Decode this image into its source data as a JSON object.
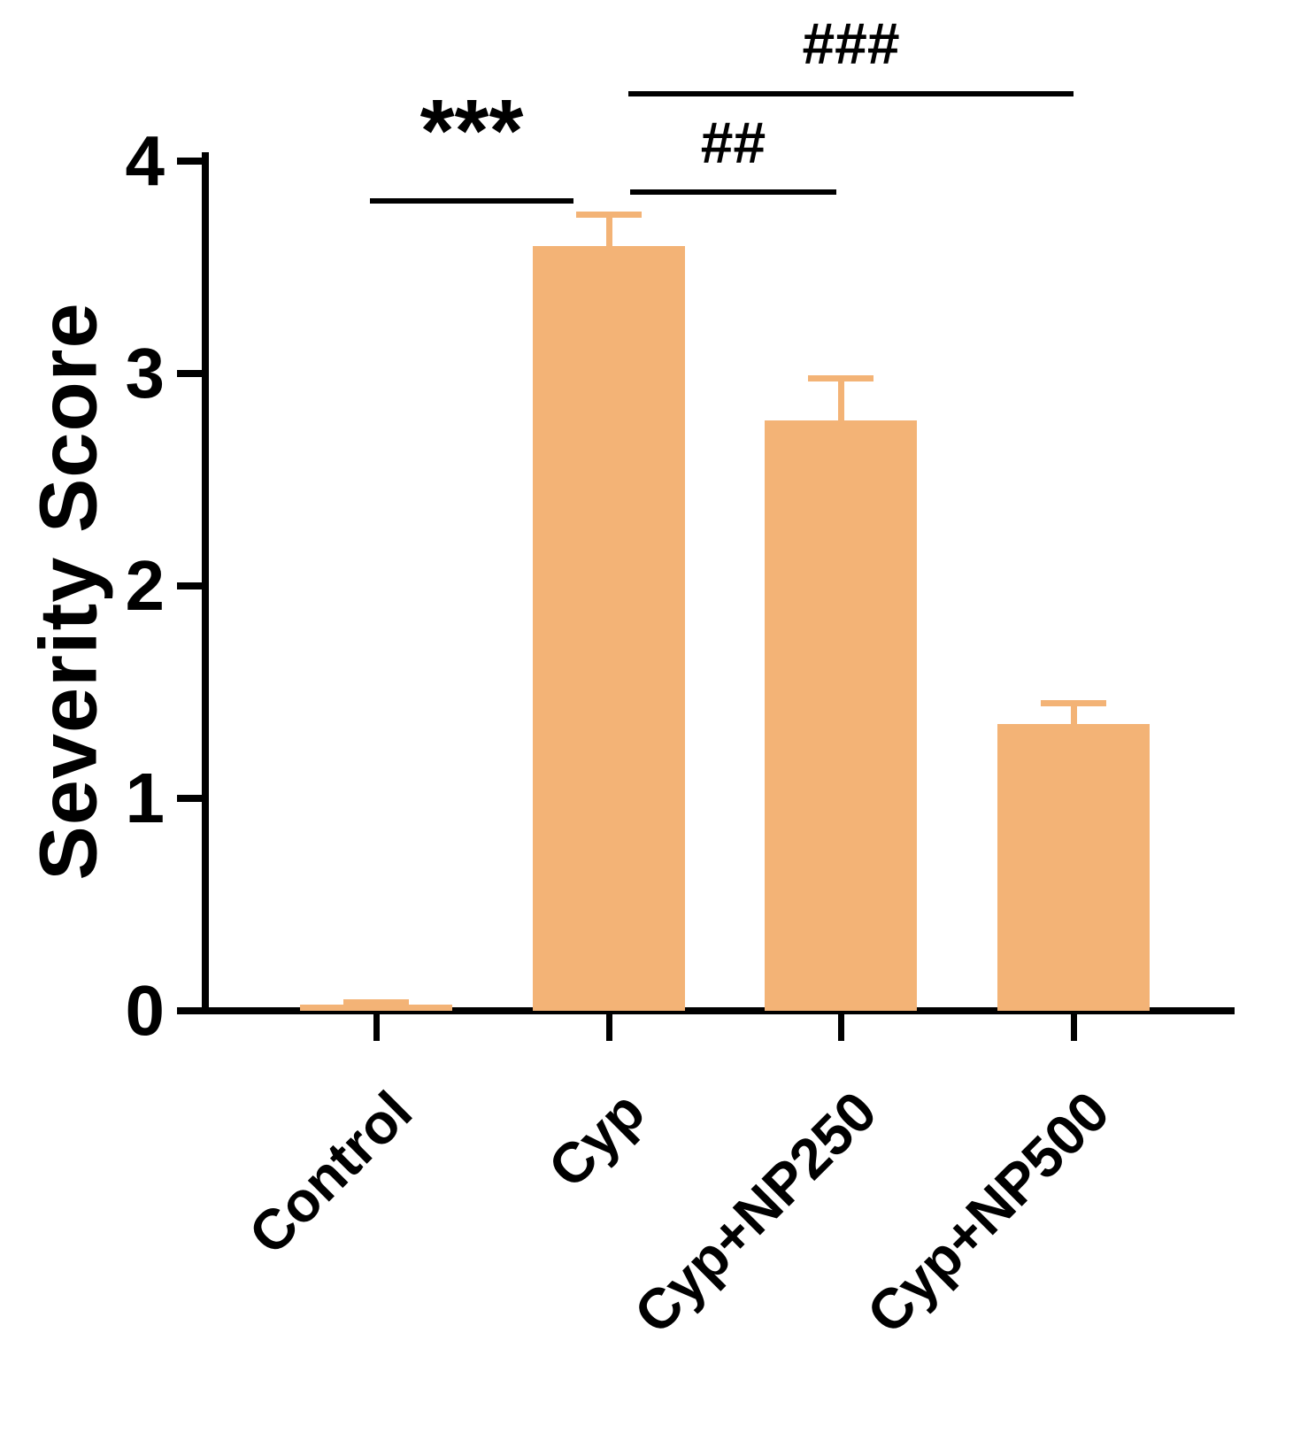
{
  "chart_data": {
    "type": "bar",
    "title": "",
    "xlabel": "",
    "ylabel": "Severity Score",
    "ylim": [
      0,
      4
    ],
    "yticks": [
      "0",
      "1",
      "2",
      "3",
      "4"
    ],
    "categories": [
      "Control",
      "Cyp",
      "Cyp+NP250",
      "Cyp+NP500"
    ],
    "values": [
      0.03,
      3.6,
      2.78,
      1.35
    ],
    "errors": [
      0.01,
      0.15,
      0.2,
      0.1
    ],
    "bar_color": "#F3B376",
    "error_bar_color": "#F3B376",
    "axis_color": "#000000",
    "grid": false,
    "legend": "none",
    "annotations": [
      {
        "label": "***",
        "from": "Control",
        "to": "Cyp"
      },
      {
        "label": "##",
        "from": "Cyp",
        "to": "Cyp+NP250"
      },
      {
        "label": "###",
        "from": "Cyp",
        "to": "Cyp+NP500"
      }
    ]
  }
}
